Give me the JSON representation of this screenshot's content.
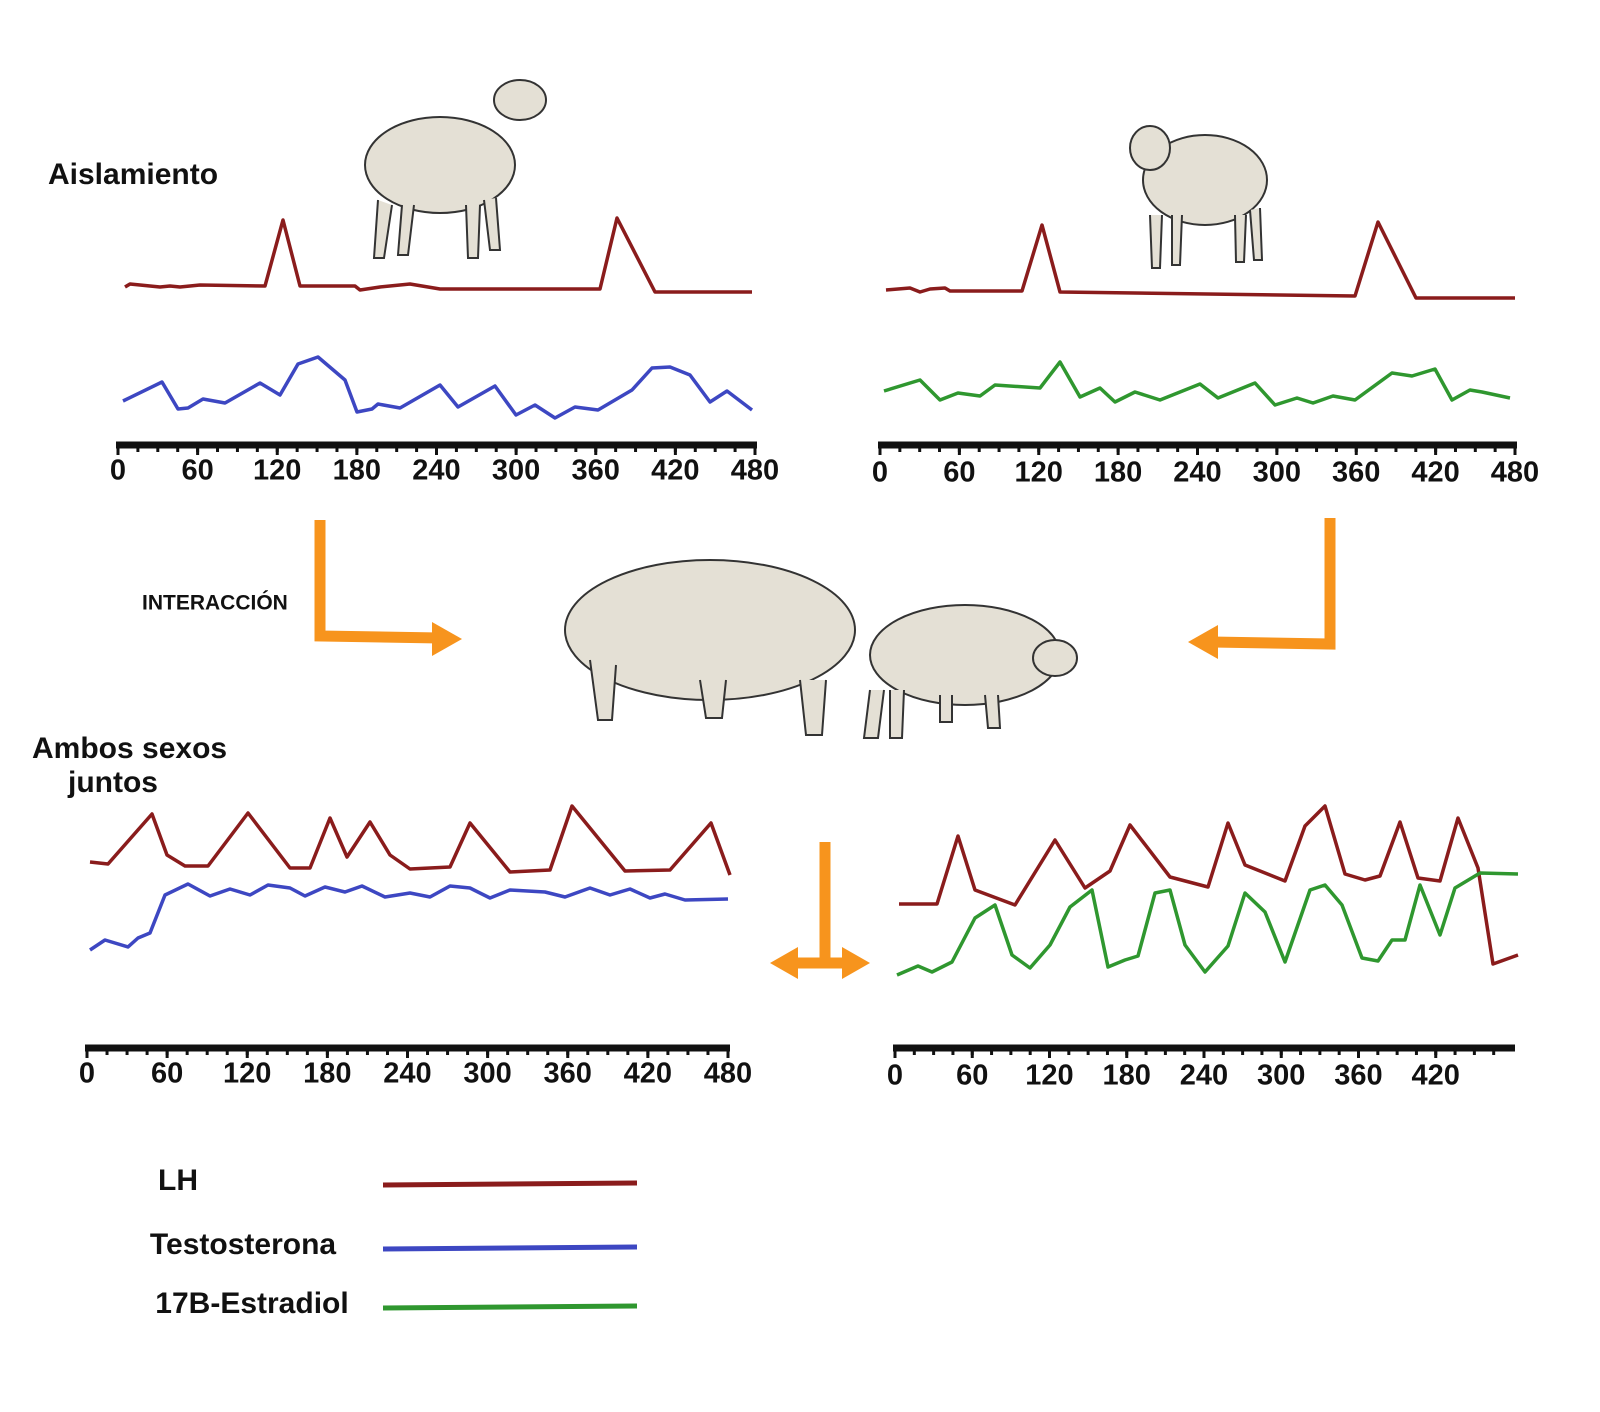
{
  "labels": {
    "isolation": "Aislamiento",
    "interaction": "INTERACCIÓN",
    "together": [
      "Ambos sexos",
      "juntos"
    ]
  },
  "panels": [
    {
      "xlim": [
        0,
        480
      ],
      "xticks": [
        0,
        60,
        120,
        180,
        240,
        300,
        360,
        420,
        480
      ]
    },
    {
      "xlim": [
        0,
        480
      ],
      "xticks": [
        0,
        60,
        120,
        180,
        240,
        300,
        360,
        420,
        480
      ]
    },
    {
      "xlim": [
        0,
        480
      ],
      "xticks": [
        0,
        60,
        120,
        180,
        240,
        300,
        360,
        420,
        480
      ]
    },
    {
      "xlim": [
        0,
        480
      ],
      "xticks": [
        0,
        60,
        120,
        180,
        240,
        300,
        360,
        420
      ]
    }
  ],
  "legend": [
    {
      "name": "LH",
      "color": "#8a1c1c"
    },
    {
      "name": "Testosterona",
      "color": "#3d47c2"
    },
    {
      "name": "17B-Estradiol",
      "color": "#2f972f"
    }
  ]
}
